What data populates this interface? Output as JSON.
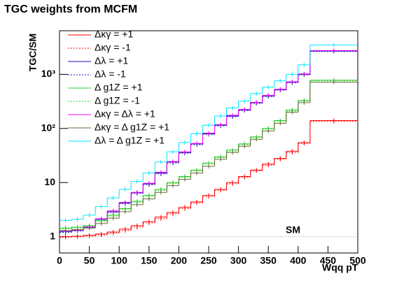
{
  "chart_data": {
    "type": "histogram",
    "title": "TGC weights from MCFM",
    "y_label": "TGC/SM",
    "x_label": "Wqq pT",
    "log_y": true,
    "bins": [
      0,
      20,
      40,
      60,
      80,
      100,
      120,
      140,
      160,
      180,
      200,
      220,
      240,
      260,
      280,
      300,
      320,
      340,
      360,
      380,
      400,
      420,
      500
    ],
    "xlim": [
      0,
      500
    ],
    "xticks": [
      0,
      50,
      100,
      150,
      200,
      250,
      300,
      350,
      400,
      450,
      500
    ],
    "ylim": [
      0.5,
      6400
    ],
    "yticks": [
      1,
      10,
      {
        "value": 100,
        "label": "10²"
      },
      {
        "value": 1000,
        "label": "10³"
      }
    ],
    "reference_line": {
      "label": "SM",
      "value": 1,
      "color": "#999999"
    },
    "legend": "upper left",
    "series": [
      {
        "name": "Δκγ = +1",
        "color": "#ff0000",
        "style": "solid",
        "values": [
          1.0,
          1.02,
          1.06,
          1.12,
          1.22,
          1.38,
          1.6,
          1.9,
          2.3,
          2.8,
          3.5,
          4.4,
          5.8,
          7.5,
          10,
          13,
          17,
          22,
          28,
          38,
          55,
          140
        ]
      },
      {
        "name": "Δκγ = -1",
        "color": "#ff0000",
        "style": "dotted",
        "values": [
          0.98,
          1.0,
          1.03,
          1.08,
          1.17,
          1.3,
          1.5,
          1.8,
          2.15,
          2.65,
          3.3,
          4.2,
          5.5,
          7.2,
          9.5,
          12.5,
          16.5,
          21,
          27,
          36,
          53,
          135
        ]
      },
      {
        "name": "Δλ = +1",
        "color": "#1010b0",
        "style": "solid",
        "values": [
          1.25,
          1.3,
          1.5,
          2.1,
          2.9,
          4.2,
          6.5,
          9.5,
          15,
          24,
          36,
          52,
          80,
          115,
          170,
          220,
          300,
          400,
          520,
          720,
          1000,
          2700
        ]
      },
      {
        "name": "Δλ = -1",
        "color": "#1010b0",
        "style": "dotted",
        "values": [
          1.2,
          1.28,
          1.45,
          2.0,
          2.8,
          4.1,
          6.3,
          9.2,
          14.5,
          23,
          35,
          50,
          78,
          112,
          165,
          215,
          290,
          390,
          510,
          700,
          980,
          2650
        ]
      },
      {
        "name": "Δ g1Z = +1",
        "color": "#22cc22",
        "style": "solid",
        "values": [
          1.45,
          1.5,
          1.6,
          2.0,
          2.5,
          3.3,
          4.5,
          5.8,
          7.5,
          10,
          13,
          17,
          23,
          30,
          40,
          52,
          70,
          100,
          140,
          220,
          330,
          780
        ]
      },
      {
        "name": "Δ g1Z = -1",
        "color": "#22cc22",
        "style": "dotted",
        "values": [
          1.4,
          1.45,
          1.55,
          1.9,
          2.4,
          3.2,
          4.3,
          5.6,
          7.2,
          9.6,
          12.5,
          16.5,
          22,
          29,
          38,
          50,
          68,
          98,
          135,
          210,
          320,
          760
        ]
      },
      {
        "name": "Δκγ = Δλ = +1",
        "color": "#ff00ff",
        "style": "solid",
        "values": [
          1.28,
          1.32,
          1.52,
          2.15,
          3.0,
          4.3,
          6.6,
          9.7,
          15.5,
          24.5,
          37,
          53,
          82,
          118,
          175,
          225,
          305,
          410,
          530,
          730,
          1020,
          2750
        ]
      },
      {
        "name": "Δκγ = Δ g1Z = +1",
        "color": "#666633",
        "style": "solid",
        "values": [
          1.3,
          1.35,
          1.45,
          1.75,
          2.2,
          2.9,
          3.9,
          5.0,
          6.6,
          8.8,
          11.5,
          15,
          20,
          27,
          36,
          47,
          63,
          90,
          125,
          200,
          300,
          720
        ]
      },
      {
        "name": "Δλ = Δ g1Z = +1",
        "color": "#00e5ff",
        "style": "solid",
        "values": [
          2.0,
          2.1,
          2.5,
          3.6,
          5.2,
          7.5,
          10.5,
          15,
          24,
          37,
          55,
          80,
          115,
          170,
          240,
          320,
          440,
          580,
          760,
          1000,
          1500,
          3500
        ]
      }
    ]
  }
}
